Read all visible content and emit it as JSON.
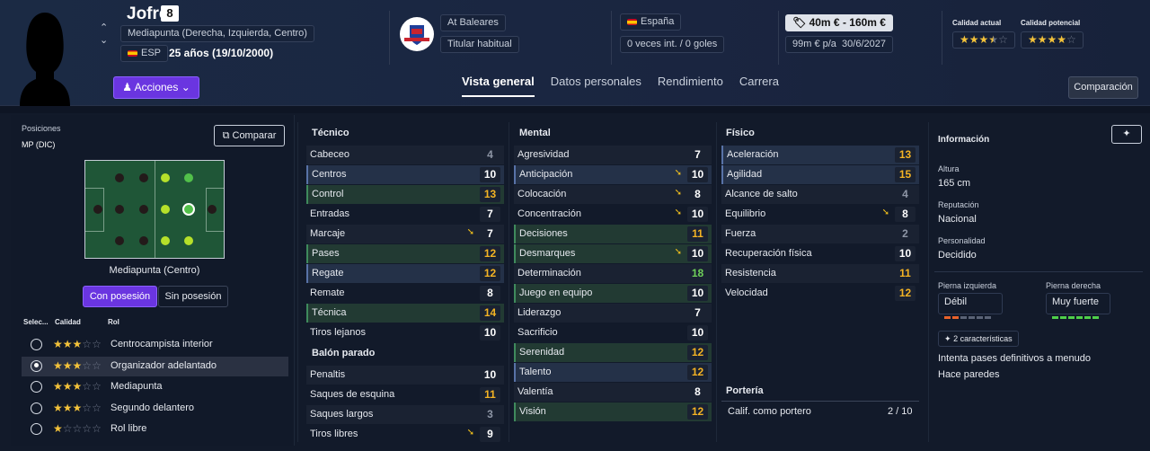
{
  "player": {
    "name": "Jofre",
    "number": "8",
    "position_desc": "Mediapunta (Derecha, Izquierda, Centro)",
    "nationality_code": "ESP",
    "age": "25 años (19/10/2000)"
  },
  "club": {
    "name": "At Baleares",
    "status": "Titular habitual"
  },
  "national": {
    "country": "España",
    "caps": "0 veces int. / 0 goles"
  },
  "value": {
    "range": "40m € - 160m €",
    "wage": "99m € p/a",
    "contract": "30/6/2027"
  },
  "ratings": {
    "current_label": "Calidad actual",
    "current_stars": 3.5,
    "potential_label": "Calidad potencial",
    "potential_stars": 4
  },
  "header": {
    "acciones": "Acciones",
    "comparacion": "Comparación"
  },
  "tabs": [
    "Vista general",
    "Datos personales",
    "Rendimiento",
    "Carrera"
  ],
  "left": {
    "positions_label": "Posiciones",
    "positions_value": "MP (DIC)",
    "compare": "Comparar",
    "pitch_caption": "Mediapunta (Centro)",
    "toggle_on": "Con posesión",
    "toggle_off": "Sin posesión",
    "table_head": {
      "sel": "Selec...",
      "calidad": "Calidad",
      "rol": "Rol"
    },
    "roles": [
      {
        "name": "Centrocampista interior",
        "stars": 3,
        "selected": false
      },
      {
        "name": "Organizador adelantado",
        "stars": 3,
        "selected": true
      },
      {
        "name": "Mediapunta",
        "stars": 3,
        "selected": false
      },
      {
        "name": "Segundo delantero",
        "stars": 3,
        "selected": false
      },
      {
        "name": "Rol libre",
        "stars": 1,
        "selected": false
      }
    ]
  },
  "tecnico": {
    "title": "Técnico",
    "items": [
      {
        "n": "Cabeceo",
        "v": "4",
        "c": "d",
        "h": ""
      },
      {
        "n": "Centros",
        "v": "10",
        "c": "w",
        "h": "blue"
      },
      {
        "n": "Control",
        "v": "13",
        "c": "y",
        "h": "green"
      },
      {
        "n": "Entradas",
        "v": "7",
        "c": "w",
        "h": ""
      },
      {
        "n": "Marcaje",
        "v": "7",
        "c": "w",
        "h": "",
        "arrow": true
      },
      {
        "n": "Pases",
        "v": "12",
        "c": "y",
        "h": "green"
      },
      {
        "n": "Regate",
        "v": "12",
        "c": "y",
        "h": "blue"
      },
      {
        "n": "Remate",
        "v": "8",
        "c": "w",
        "h": ""
      },
      {
        "n": "Técnica",
        "v": "14",
        "c": "y",
        "h": "green"
      },
      {
        "n": "Tiros lejanos",
        "v": "10",
        "c": "w",
        "h": ""
      }
    ]
  },
  "balon": {
    "title": "Balón parado",
    "items": [
      {
        "n": "Penaltis",
        "v": "10",
        "c": "w",
        "h": ""
      },
      {
        "n": "Saques de esquina",
        "v": "11",
        "c": "y",
        "h": ""
      },
      {
        "n": "Saques largos",
        "v": "3",
        "c": "d",
        "h": ""
      },
      {
        "n": "Tiros libres",
        "v": "9",
        "c": "w",
        "h": "",
        "arrow": true
      }
    ]
  },
  "mental": {
    "title": "Mental",
    "items": [
      {
        "n": "Agresividad",
        "v": "7",
        "c": "w",
        "h": ""
      },
      {
        "n": "Anticipación",
        "v": "10",
        "c": "w",
        "h": "blue",
        "arrow": true
      },
      {
        "n": "Colocación",
        "v": "8",
        "c": "w",
        "h": "",
        "arrow": true
      },
      {
        "n": "Concentración",
        "v": "10",
        "c": "w",
        "h": "",
        "arrow": true
      },
      {
        "n": "Decisiones",
        "v": "11",
        "c": "y",
        "h": "green"
      },
      {
        "n": "Desmarques",
        "v": "10",
        "c": "w",
        "h": "green",
        "arrow": true
      },
      {
        "n": "Determinación",
        "v": "18",
        "c": "g",
        "h": ""
      },
      {
        "n": "Juego en equipo",
        "v": "10",
        "c": "w",
        "h": "green"
      },
      {
        "n": "Liderazgo",
        "v": "7",
        "c": "w",
        "h": ""
      },
      {
        "n": "Sacrificio",
        "v": "10",
        "c": "w",
        "h": ""
      },
      {
        "n": "Serenidad",
        "v": "12",
        "c": "y",
        "h": "green"
      },
      {
        "n": "Talento",
        "v": "12",
        "c": "y",
        "h": "blue"
      },
      {
        "n": "Valentía",
        "v": "8",
        "c": "w",
        "h": ""
      },
      {
        "n": "Visión",
        "v": "12",
        "c": "y",
        "h": "green"
      }
    ]
  },
  "fisico": {
    "title": "Físico",
    "items": [
      {
        "n": "Aceleración",
        "v": "13",
        "c": "y",
        "h": "blue"
      },
      {
        "n": "Agilidad",
        "v": "15",
        "c": "y",
        "h": "blue"
      },
      {
        "n": "Alcance de salto",
        "v": "4",
        "c": "d",
        "h": ""
      },
      {
        "n": "Equilibrio",
        "v": "8",
        "c": "w",
        "h": "",
        "arrow": true
      },
      {
        "n": "Fuerza",
        "v": "2",
        "c": "d",
        "h": ""
      },
      {
        "n": "Recuperación física",
        "v": "10",
        "c": "w",
        "h": ""
      },
      {
        "n": "Resistencia",
        "v": "11",
        "c": "y",
        "h": ""
      },
      {
        "n": "Velocidad",
        "v": "12",
        "c": "y",
        "h": ""
      }
    ]
  },
  "porteria": {
    "title": "Portería",
    "label": "Calif. como portero",
    "value": "2 / 10"
  },
  "info": {
    "title": "Información",
    "altura_k": "Altura",
    "altura_v": "165 cm",
    "reput_k": "Reputación",
    "reput_v": "Nacional",
    "pers_k": "Personalidad",
    "pers_v": "Decidido",
    "pie_izq_k": "Pierna izquierda",
    "pie_izq_v": "Débil",
    "pie_izq_level": 2,
    "pie_der_k": "Pierna derecha",
    "pie_der_v": "Muy fuerte",
    "pie_der_level": 6,
    "traits_count": "2 características",
    "traits": [
      "Intenta pases definitivos a menudo",
      "Hace paredes"
    ]
  },
  "colors": {
    "accent": "#6a35e0",
    "yellow": "#f4b324",
    "green": "#6fd05a",
    "star": "#f3c23a"
  }
}
